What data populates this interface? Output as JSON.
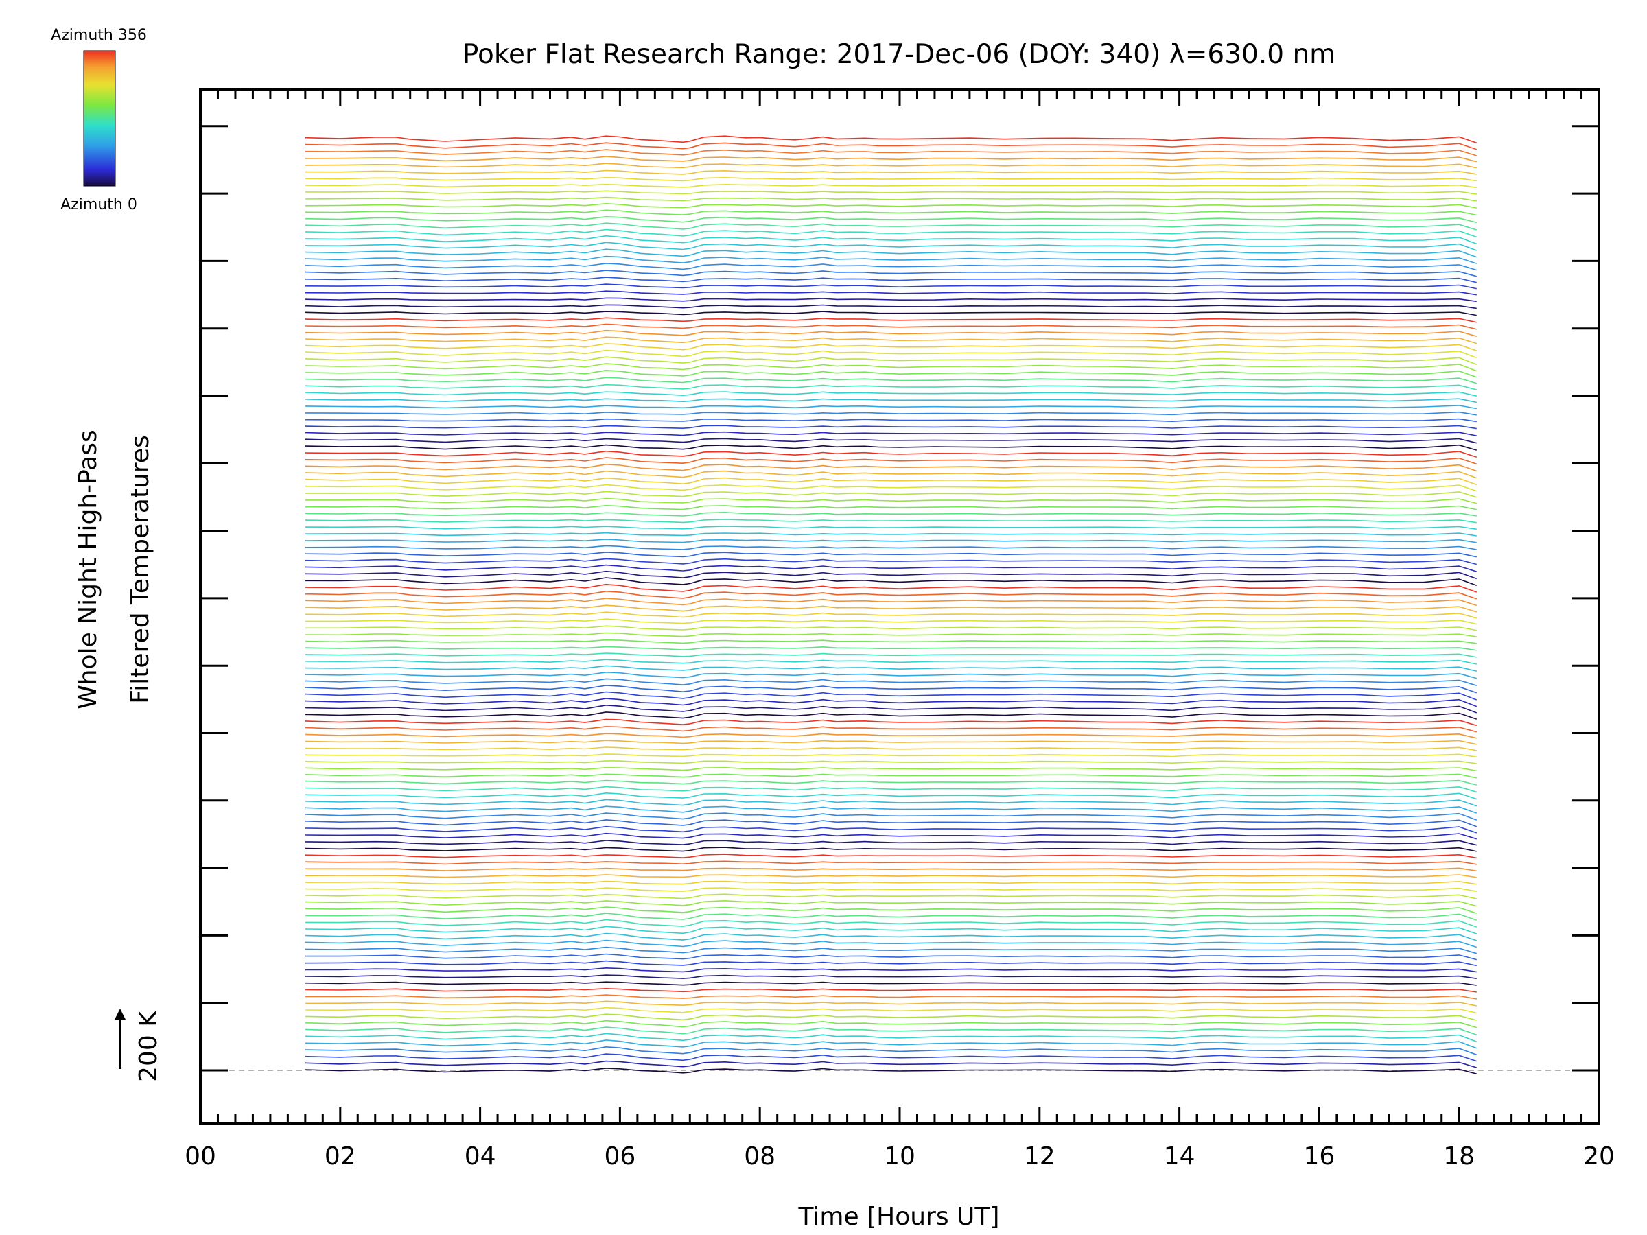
{
  "chart_data": {
    "type": "line",
    "title": "Poker Flat Research Range: 2017-Dec-06 (DOY: 340) λ=630.0 nm",
    "xlabel": "Time [Hours UT]",
    "ylabel_line1": "Whole Night High-Pass",
    "ylabel_line2": "Filtered Temperatures",
    "scale_label": "200 K",
    "xlim": [
      0,
      20
    ],
    "x_ticks": [
      "00",
      "02",
      "04",
      "06",
      "08",
      "10",
      "12",
      "14",
      "16",
      "18",
      "20"
    ],
    "x_range_data": [
      1.5,
      18.25
    ],
    "n_traces": 140,
    "trace_offset_K": 25,
    "colorbar": {
      "top_label": "Azimuth 356",
      "bottom_label": "Azimuth 0",
      "min": 0,
      "max": 356
    },
    "groups": [
      {
        "size": 13,
        "order": "low-az at bottom",
        "az_start": 0,
        "az_end": 356
      },
      {
        "size": 20,
        "az_start": 0,
        "az_end": 356
      },
      {
        "size": 20,
        "az_start": 0,
        "az_end": 356
      },
      {
        "size": 20,
        "az_start": 0,
        "az_end": 356
      },
      {
        "size": 20,
        "az_start": 0,
        "az_end": 356
      },
      {
        "size": 20,
        "az_start": 0,
        "az_end": 356
      },
      {
        "size": 27,
        "az_start": 0,
        "az_end": 356
      }
    ],
    "base_trace": {
      "x": [
        1.5,
        2.0,
        2.5,
        2.8,
        3.0,
        3.5,
        4.0,
        4.5,
        5.0,
        5.3,
        5.5,
        5.8,
        6.0,
        6.3,
        6.6,
        6.9,
        7.0,
        7.2,
        7.5,
        7.8,
        8.0,
        8.3,
        8.5,
        8.7,
        8.9,
        9.1,
        9.3,
        9.5,
        9.7,
        10.0,
        10.5,
        11.0,
        11.5,
        12.0,
        12.5,
        13.0,
        13.5,
        13.9,
        14.3,
        14.6,
        15.0,
        15.5,
        16.0,
        16.5,
        17.0,
        17.5,
        18.0,
        18.25
      ],
      "y": [
        8,
        0,
        10,
        12,
        -5,
        -25,
        -10,
        8,
        -8,
        12,
        -5,
        30,
        20,
        -10,
        -20,
        -35,
        -25,
        15,
        22,
        5,
        10,
        -5,
        -12,
        0,
        18,
        0,
        5,
        8,
        -2,
        -8,
        0,
        5,
        -3,
        8,
        3,
        0,
        -5,
        -20,
        5,
        12,
        0,
        -3,
        8,
        2,
        -15,
        -8,
        20,
        -45
      ]
    }
  }
}
